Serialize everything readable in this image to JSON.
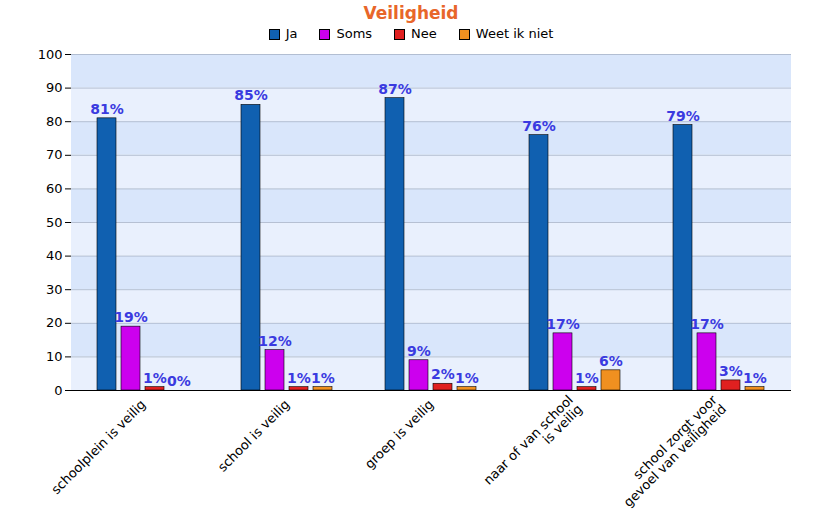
{
  "chart_data": {
    "type": "bar",
    "title": "Veiligheid",
    "categories": [
      "schoolplein is veilig",
      "school is veilig",
      "groep is veilig",
      "naar of van school\nis veilig",
      "school zorgt voor\ngevoel van veiligheid"
    ],
    "series": [
      {
        "name": "Ja",
        "color": "#1060b0",
        "values": [
          81,
          85,
          87,
          76,
          79
        ],
        "value_labels": [
          "81%",
          "85%",
          "87%",
          "76%",
          "79%"
        ]
      },
      {
        "name": "Soms",
        "color": "#cc00ee",
        "values": [
          19,
          12,
          9,
          17,
          17
        ],
        "value_labels": [
          "19%",
          "12%",
          "9%",
          "17%",
          "17%"
        ]
      },
      {
        "name": "Nee",
        "color": "#e02020",
        "values": [
          1,
          1,
          2,
          1,
          3
        ],
        "value_labels": [
          "1%",
          "1%",
          "2%",
          "1%",
          "3%"
        ]
      },
      {
        "name": "Weet ik niet",
        "color": "#f09020",
        "values": [
          0,
          1,
          1,
          6,
          1
        ],
        "value_labels": [
          "0%",
          "1%",
          "1%",
          "6%",
          "1%"
        ]
      }
    ],
    "ylim": [
      0,
      100
    ],
    "yticks": [
      0,
      10,
      20,
      30,
      40,
      50,
      60,
      70,
      80,
      90,
      100
    ],
    "grid": true,
    "legend": "top",
    "data_labels": true
  }
}
